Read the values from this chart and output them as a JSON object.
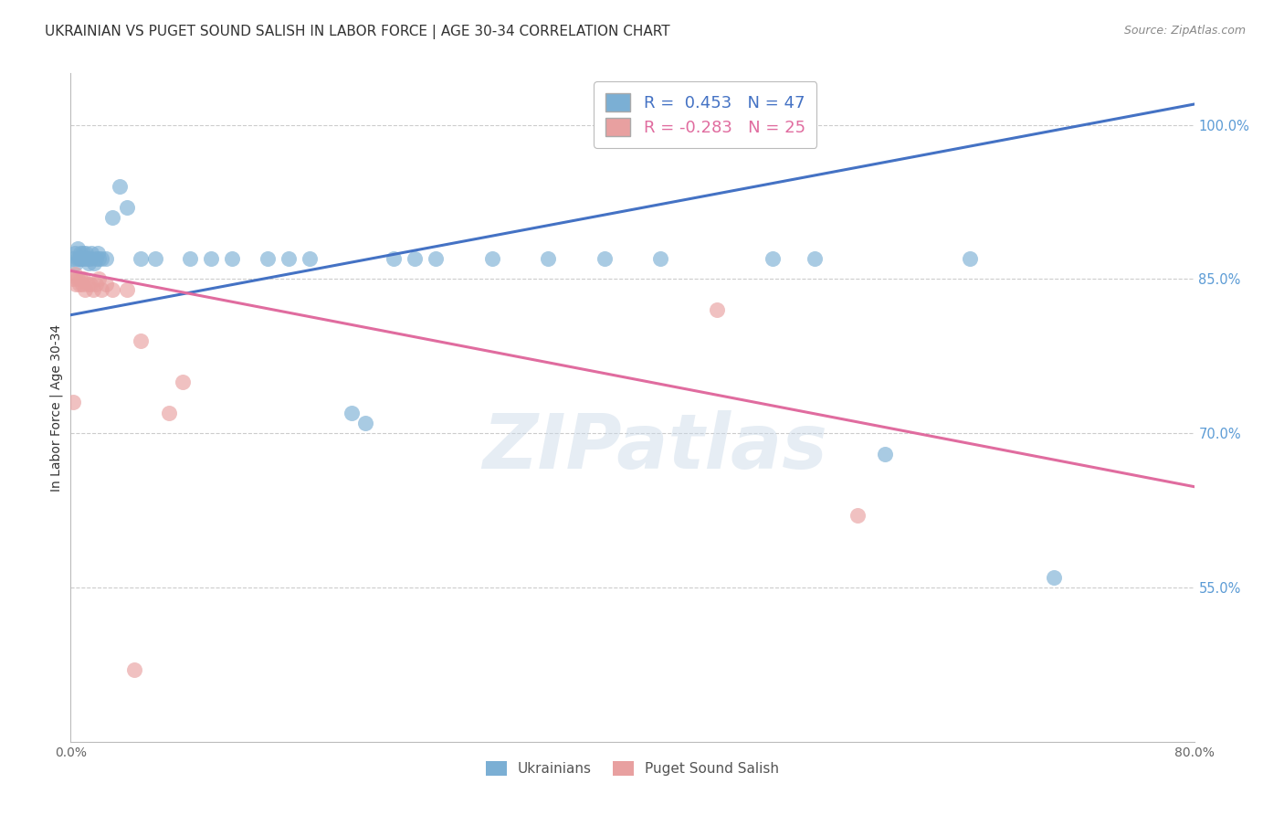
{
  "title": "UKRAINIAN VS PUGET SOUND SALISH IN LABOR FORCE | AGE 30-34 CORRELATION CHART",
  "source": "Source: ZipAtlas.com",
  "ylabel": "In Labor Force | Age 30-34",
  "xlim": [
    0.0,
    0.8
  ],
  "ylim": [
    0.4,
    1.05
  ],
  "x_tick_positions": [
    0.0,
    0.1,
    0.2,
    0.3,
    0.4,
    0.5,
    0.6,
    0.7,
    0.8
  ],
  "x_tick_labels": [
    "0.0%",
    "",
    "",
    "",
    "",
    "",
    "",
    "",
    "80.0%"
  ],
  "y_ticks_right": [
    1.0,
    0.85,
    0.7,
    0.55
  ],
  "y_tick_labels_right": [
    "100.0%",
    "85.0%",
    "70.0%",
    "55.0%"
  ],
  "legend_r_blue": "0.453",
  "legend_n_blue": "47",
  "legend_r_pink": "-0.283",
  "legend_n_pink": "25",
  "blue_scatter_x": [
    0.002,
    0.003,
    0.004,
    0.005,
    0.005,
    0.006,
    0.007,
    0.007,
    0.008,
    0.009,
    0.01,
    0.011,
    0.012,
    0.013,
    0.014,
    0.015,
    0.017,
    0.018,
    0.019,
    0.02,
    0.022,
    0.025,
    0.03,
    0.035,
    0.04,
    0.05,
    0.06,
    0.085,
    0.1,
    0.115,
    0.14,
    0.155,
    0.17,
    0.2,
    0.21,
    0.23,
    0.245,
    0.26,
    0.3,
    0.34,
    0.38,
    0.42,
    0.5,
    0.53,
    0.58,
    0.64,
    0.7
  ],
  "blue_scatter_y": [
    0.87,
    0.875,
    0.865,
    0.87,
    0.88,
    0.87,
    0.875,
    0.87,
    0.87,
    0.875,
    0.87,
    0.875,
    0.87,
    0.865,
    0.87,
    0.875,
    0.865,
    0.87,
    0.875,
    0.87,
    0.87,
    0.87,
    0.91,
    0.94,
    0.92,
    0.87,
    0.87,
    0.87,
    0.87,
    0.87,
    0.87,
    0.87,
    0.87,
    0.72,
    0.71,
    0.87,
    0.87,
    0.87,
    0.87,
    0.87,
    0.87,
    0.87,
    0.87,
    0.87,
    0.68,
    0.87,
    0.56
  ],
  "pink_scatter_x": [
    0.002,
    0.003,
    0.004,
    0.005,
    0.006,
    0.007,
    0.008,
    0.009,
    0.01,
    0.012,
    0.014,
    0.016,
    0.018,
    0.02,
    0.022,
    0.025,
    0.03,
    0.04,
    0.05,
    0.07,
    0.08,
    0.46,
    0.56,
    0.002,
    0.045
  ],
  "pink_scatter_y": [
    0.85,
    0.855,
    0.845,
    0.85,
    0.845,
    0.85,
    0.845,
    0.85,
    0.84,
    0.845,
    0.845,
    0.84,
    0.845,
    0.85,
    0.84,
    0.845,
    0.84,
    0.84,
    0.79,
    0.72,
    0.75,
    0.82,
    0.62,
    0.73,
    0.47
  ],
  "blue_line_x": [
    0.0,
    0.8
  ],
  "blue_line_y": [
    0.815,
    1.02
  ],
  "pink_line_x": [
    0.0,
    0.8
  ],
  "pink_line_y": [
    0.858,
    0.648
  ],
  "watermark": "ZIPatlas",
  "background_color": "#ffffff",
  "blue_color": "#7bafd4",
  "pink_color": "#e8a0a0",
  "blue_line_color": "#4472c4",
  "pink_line_color": "#e06c9f",
  "grid_color": "#cccccc",
  "right_axis_color": "#5b9bd5",
  "title_fontsize": 11,
  "axis_label_fontsize": 10
}
